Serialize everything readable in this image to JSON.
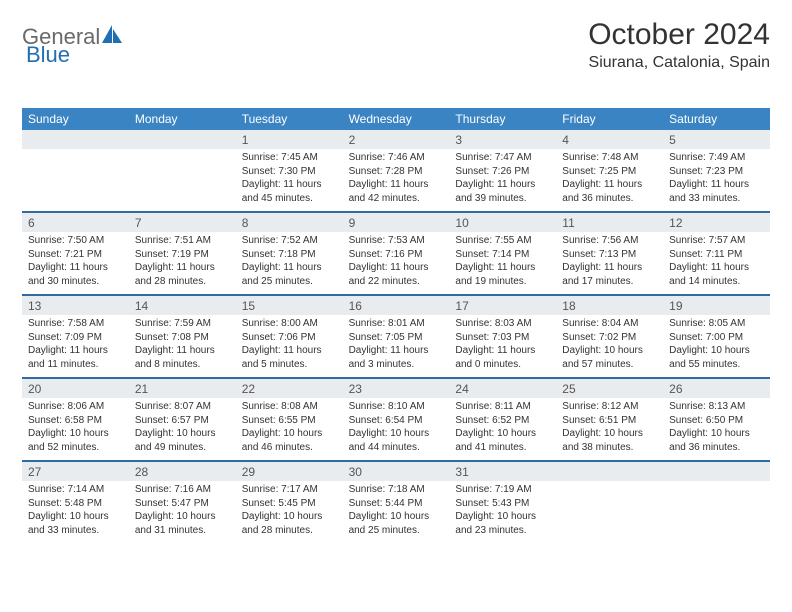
{
  "logo": {
    "part1": "General",
    "part2": "Blue"
  },
  "title": "October 2024",
  "location": "Siurana, Catalonia, Spain",
  "colors": {
    "header_bg": "#3b84c4",
    "header_text": "#ffffff",
    "daynum_bg": "#e9ecef",
    "week_border": "#2f6aa0",
    "title_color": "#333333",
    "logo_gray": "#6a6a6a",
    "logo_blue": "#1f6fb2"
  },
  "weekday_labels": [
    "Sunday",
    "Monday",
    "Tuesday",
    "Wednesday",
    "Thursday",
    "Friday",
    "Saturday"
  ],
  "weeks": [
    {
      "nums": [
        "",
        "",
        "1",
        "2",
        "3",
        "4",
        "5"
      ],
      "cells": [
        {
          "sunrise": "",
          "sunset": "",
          "daylight": ""
        },
        {
          "sunrise": "",
          "sunset": "",
          "daylight": ""
        },
        {
          "sunrise": "Sunrise: 7:45 AM",
          "sunset": "Sunset: 7:30 PM",
          "daylight": "Daylight: 11 hours and 45 minutes."
        },
        {
          "sunrise": "Sunrise: 7:46 AM",
          "sunset": "Sunset: 7:28 PM",
          "daylight": "Daylight: 11 hours and 42 minutes."
        },
        {
          "sunrise": "Sunrise: 7:47 AM",
          "sunset": "Sunset: 7:26 PM",
          "daylight": "Daylight: 11 hours and 39 minutes."
        },
        {
          "sunrise": "Sunrise: 7:48 AM",
          "sunset": "Sunset: 7:25 PM",
          "daylight": "Daylight: 11 hours and 36 minutes."
        },
        {
          "sunrise": "Sunrise: 7:49 AM",
          "sunset": "Sunset: 7:23 PM",
          "daylight": "Daylight: 11 hours and 33 minutes."
        }
      ]
    },
    {
      "nums": [
        "6",
        "7",
        "8",
        "9",
        "10",
        "11",
        "12"
      ],
      "cells": [
        {
          "sunrise": "Sunrise: 7:50 AM",
          "sunset": "Sunset: 7:21 PM",
          "daylight": "Daylight: 11 hours and 30 minutes."
        },
        {
          "sunrise": "Sunrise: 7:51 AM",
          "sunset": "Sunset: 7:19 PM",
          "daylight": "Daylight: 11 hours and 28 minutes."
        },
        {
          "sunrise": "Sunrise: 7:52 AM",
          "sunset": "Sunset: 7:18 PM",
          "daylight": "Daylight: 11 hours and 25 minutes."
        },
        {
          "sunrise": "Sunrise: 7:53 AM",
          "sunset": "Sunset: 7:16 PM",
          "daylight": "Daylight: 11 hours and 22 minutes."
        },
        {
          "sunrise": "Sunrise: 7:55 AM",
          "sunset": "Sunset: 7:14 PM",
          "daylight": "Daylight: 11 hours and 19 minutes."
        },
        {
          "sunrise": "Sunrise: 7:56 AM",
          "sunset": "Sunset: 7:13 PM",
          "daylight": "Daylight: 11 hours and 17 minutes."
        },
        {
          "sunrise": "Sunrise: 7:57 AM",
          "sunset": "Sunset: 7:11 PM",
          "daylight": "Daylight: 11 hours and 14 minutes."
        }
      ]
    },
    {
      "nums": [
        "13",
        "14",
        "15",
        "16",
        "17",
        "18",
        "19"
      ],
      "cells": [
        {
          "sunrise": "Sunrise: 7:58 AM",
          "sunset": "Sunset: 7:09 PM",
          "daylight": "Daylight: 11 hours and 11 minutes."
        },
        {
          "sunrise": "Sunrise: 7:59 AM",
          "sunset": "Sunset: 7:08 PM",
          "daylight": "Daylight: 11 hours and 8 minutes."
        },
        {
          "sunrise": "Sunrise: 8:00 AM",
          "sunset": "Sunset: 7:06 PM",
          "daylight": "Daylight: 11 hours and 5 minutes."
        },
        {
          "sunrise": "Sunrise: 8:01 AM",
          "sunset": "Sunset: 7:05 PM",
          "daylight": "Daylight: 11 hours and 3 minutes."
        },
        {
          "sunrise": "Sunrise: 8:03 AM",
          "sunset": "Sunset: 7:03 PM",
          "daylight": "Daylight: 11 hours and 0 minutes."
        },
        {
          "sunrise": "Sunrise: 8:04 AM",
          "sunset": "Sunset: 7:02 PM",
          "daylight": "Daylight: 10 hours and 57 minutes."
        },
        {
          "sunrise": "Sunrise: 8:05 AM",
          "sunset": "Sunset: 7:00 PM",
          "daylight": "Daylight: 10 hours and 55 minutes."
        }
      ]
    },
    {
      "nums": [
        "20",
        "21",
        "22",
        "23",
        "24",
        "25",
        "26"
      ],
      "cells": [
        {
          "sunrise": "Sunrise: 8:06 AM",
          "sunset": "Sunset: 6:58 PM",
          "daylight": "Daylight: 10 hours and 52 minutes."
        },
        {
          "sunrise": "Sunrise: 8:07 AM",
          "sunset": "Sunset: 6:57 PM",
          "daylight": "Daylight: 10 hours and 49 minutes."
        },
        {
          "sunrise": "Sunrise: 8:08 AM",
          "sunset": "Sunset: 6:55 PM",
          "daylight": "Daylight: 10 hours and 46 minutes."
        },
        {
          "sunrise": "Sunrise: 8:10 AM",
          "sunset": "Sunset: 6:54 PM",
          "daylight": "Daylight: 10 hours and 44 minutes."
        },
        {
          "sunrise": "Sunrise: 8:11 AM",
          "sunset": "Sunset: 6:52 PM",
          "daylight": "Daylight: 10 hours and 41 minutes."
        },
        {
          "sunrise": "Sunrise: 8:12 AM",
          "sunset": "Sunset: 6:51 PM",
          "daylight": "Daylight: 10 hours and 38 minutes."
        },
        {
          "sunrise": "Sunrise: 8:13 AM",
          "sunset": "Sunset: 6:50 PM",
          "daylight": "Daylight: 10 hours and 36 minutes."
        }
      ]
    },
    {
      "nums": [
        "27",
        "28",
        "29",
        "30",
        "31",
        "",
        ""
      ],
      "cells": [
        {
          "sunrise": "Sunrise: 7:14 AM",
          "sunset": "Sunset: 5:48 PM",
          "daylight": "Daylight: 10 hours and 33 minutes."
        },
        {
          "sunrise": "Sunrise: 7:16 AM",
          "sunset": "Sunset: 5:47 PM",
          "daylight": "Daylight: 10 hours and 31 minutes."
        },
        {
          "sunrise": "Sunrise: 7:17 AM",
          "sunset": "Sunset: 5:45 PM",
          "daylight": "Daylight: 10 hours and 28 minutes."
        },
        {
          "sunrise": "Sunrise: 7:18 AM",
          "sunset": "Sunset: 5:44 PM",
          "daylight": "Daylight: 10 hours and 25 minutes."
        },
        {
          "sunrise": "Sunrise: 7:19 AM",
          "sunset": "Sunset: 5:43 PM",
          "daylight": "Daylight: 10 hours and 23 minutes."
        },
        {
          "sunrise": "",
          "sunset": "",
          "daylight": ""
        },
        {
          "sunrise": "",
          "sunset": "",
          "daylight": ""
        }
      ]
    }
  ]
}
